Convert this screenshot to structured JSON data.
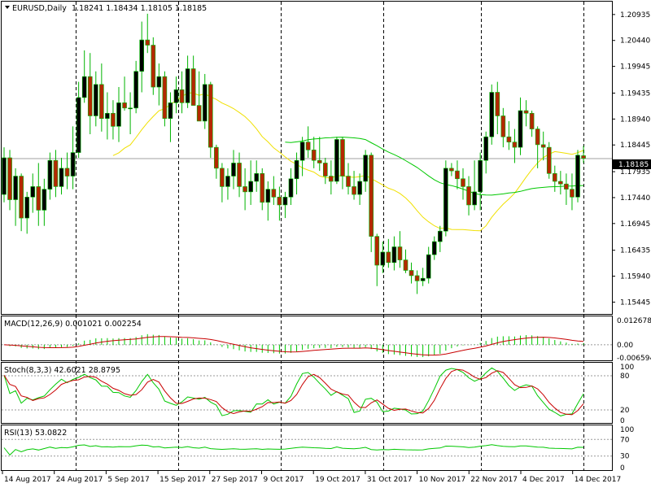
{
  "header": {
    "symbol": "EURUSD,Daily",
    "ohlc": "1.18241 1.18434 1.18105 1.18185"
  },
  "chart_data": [
    {
      "type": "candlestick",
      "title": "EURUSD,Daily",
      "ylim": [
        1.1525,
        1.2115
      ],
      "y_ticks": [
        "1.20935",
        "1.20440",
        "1.19945",
        "1.19435",
        "1.18940",
        "1.18445",
        "1.17935",
        "1.17440",
        "1.16945",
        "1.16435",
        "1.15940",
        "1.15445"
      ],
      "current_price": "1.18185",
      "colors": {
        "bull": "#00b400",
        "bear": "#d20000",
        "body_bull": "#000000",
        "body_bear": "#b42800",
        "ma_fast": "#f0e000",
        "ma_slow": "#00c800",
        "price_line": "#a0a0a0"
      },
      "candles": [
        [
          1.175,
          1.184,
          1.1735,
          1.182
        ],
        [
          1.182,
          1.1835,
          1.172,
          1.174
        ],
        [
          1.174,
          1.18,
          1.169,
          1.1785
        ],
        [
          1.1785,
          1.179,
          1.168,
          1.1705
        ],
        [
          1.1705,
          1.1755,
          1.1675,
          1.1745
        ],
        [
          1.1745,
          1.179,
          1.1715,
          1.1765
        ],
        [
          1.1765,
          1.181,
          1.169,
          1.172
        ],
        [
          1.172,
          1.178,
          1.169,
          1.176
        ],
        [
          1.176,
          1.183,
          1.174,
          1.1815
        ],
        [
          1.1815,
          1.1835,
          1.1745,
          1.1765
        ],
        [
          1.1765,
          1.182,
          1.175,
          1.18
        ],
        [
          1.18,
          1.183,
          1.176,
          1.1785
        ],
        [
          1.1785,
          1.188,
          1.176,
          1.183
        ],
        [
          1.183,
          1.1965,
          1.182,
          1.1935
        ],
        [
          1.1935,
          1.2025,
          1.1925,
          1.1975
        ],
        [
          1.1975,
          1.202,
          1.1865,
          1.19
        ],
        [
          1.19,
          1.1985,
          1.188,
          1.196
        ],
        [
          1.196,
          1.2,
          1.187,
          1.1895
        ],
        [
          1.1895,
          1.1945,
          1.1855,
          1.1905
        ],
        [
          1.1905,
          1.193,
          1.1855,
          1.188
        ],
        [
          1.188,
          1.1955,
          1.185,
          1.1925
        ],
        [
          1.1925,
          1.1975,
          1.191,
          1.1915
        ],
        [
          1.1915,
          1.1945,
          1.1865,
          1.1915
        ],
        [
          1.1915,
          1.2005,
          1.1905,
          1.1985
        ],
        [
          1.1985,
          1.208,
          1.1945,
          1.2045
        ],
        [
          1.2045,
          1.2095,
          1.202,
          1.2035
        ],
        [
          1.2035,
          1.205,
          1.194,
          1.1955
        ],
        [
          1.1955,
          1.2,
          1.192,
          1.1975
        ],
        [
          1.1975,
          1.1985,
          1.188,
          1.1895
        ],
        [
          1.1895,
          1.1945,
          1.185,
          1.1925
        ],
        [
          1.1925,
          1.1975,
          1.1905,
          1.195
        ],
        [
          1.195,
          1.1985,
          1.1905,
          1.1925
        ],
        [
          1.1925,
          1.2015,
          1.1915,
          1.199
        ],
        [
          1.199,
          1.2015,
          1.192,
          1.192
        ],
        [
          1.192,
          1.1985,
          1.189,
          1.189
        ],
        [
          1.189,
          1.198,
          1.1875,
          1.196
        ],
        [
          1.196,
          1.1965,
          1.182,
          1.184
        ],
        [
          1.184,
          1.1845,
          1.178,
          1.18
        ],
        [
          1.18,
          1.181,
          1.1735,
          1.1765
        ],
        [
          1.1765,
          1.18,
          1.174,
          1.1785
        ],
        [
          1.1785,
          1.1835,
          1.176,
          1.181
        ],
        [
          1.181,
          1.183,
          1.1745,
          1.1765
        ],
        [
          1.1765,
          1.18,
          1.172,
          1.1755
        ],
        [
          1.1755,
          1.1815,
          1.173,
          1.1775
        ],
        [
          1.1775,
          1.1815,
          1.1755,
          1.179
        ],
        [
          1.179,
          1.18,
          1.172,
          1.1735
        ],
        [
          1.1735,
          1.1775,
          1.17,
          1.176
        ],
        [
          1.176,
          1.1785,
          1.173,
          1.1745
        ],
        [
          1.1745,
          1.1765,
          1.17,
          1.173
        ],
        [
          1.173,
          1.1755,
          1.1705,
          1.1745
        ],
        [
          1.1745,
          1.18,
          1.173,
          1.178
        ],
        [
          1.178,
          1.183,
          1.175,
          1.1815
        ],
        [
          1.1815,
          1.186,
          1.1785,
          1.185
        ],
        [
          1.185,
          1.188,
          1.182,
          1.1835
        ],
        [
          1.1835,
          1.186,
          1.18,
          1.1815
        ],
        [
          1.1815,
          1.186,
          1.1795,
          1.181
        ],
        [
          1.181,
          1.182,
          1.177,
          1.1785
        ],
        [
          1.1785,
          1.1815,
          1.175,
          1.1775
        ],
        [
          1.1775,
          1.186,
          1.177,
          1.1855
        ],
        [
          1.1855,
          1.186,
          1.176,
          1.1785
        ],
        [
          1.1785,
          1.181,
          1.175,
          1.1765
        ],
        [
          1.1765,
          1.1795,
          1.174,
          1.175
        ],
        [
          1.175,
          1.179,
          1.173,
          1.1775
        ],
        [
          1.1775,
          1.1835,
          1.1755,
          1.1825
        ],
        [
          1.1825,
          1.183,
          1.164,
          1.167
        ],
        [
          1.167,
          1.1675,
          1.1575,
          1.1615
        ],
        [
          1.1615,
          1.166,
          1.16,
          1.164
        ],
        [
          1.164,
          1.1665,
          1.161,
          1.162
        ],
        [
          1.162,
          1.167,
          1.1605,
          1.165
        ],
        [
          1.165,
          1.168,
          1.161,
          1.1625
        ],
        [
          1.1625,
          1.1645,
          1.16,
          1.1605
        ],
        [
          1.1605,
          1.162,
          1.158,
          1.1595
        ],
        [
          1.1595,
          1.1605,
          1.156,
          1.1585
        ],
        [
          1.1585,
          1.161,
          1.1575,
          1.159
        ],
        [
          1.159,
          1.165,
          1.158,
          1.1635
        ],
        [
          1.1635,
          1.167,
          1.1625,
          1.166
        ],
        [
          1.166,
          1.169,
          1.164,
          1.168
        ],
        [
          1.168,
          1.1815,
          1.167,
          1.18
        ],
        [
          1.18,
          1.181,
          1.1785,
          1.1795
        ],
        [
          1.1795,
          1.1815,
          1.176,
          1.178
        ],
        [
          1.178,
          1.18,
          1.174,
          1.1765
        ],
        [
          1.1765,
          1.1785,
          1.171,
          1.173
        ],
        [
          1.173,
          1.1815,
          1.172,
          1.1755
        ],
        [
          1.1755,
          1.183,
          1.172,
          1.1815
        ],
        [
          1.1815,
          1.187,
          1.179,
          1.186
        ],
        [
          1.186,
          1.196,
          1.1845,
          1.1945
        ],
        [
          1.1945,
          1.1965,
          1.1865,
          1.19
        ],
        [
          1.19,
          1.1915,
          1.184,
          1.186
        ],
        [
          1.186,
          1.189,
          1.1835,
          1.185
        ],
        [
          1.185,
          1.1875,
          1.181,
          1.184
        ],
        [
          1.184,
          1.1935,
          1.1825,
          1.191
        ],
        [
          1.191,
          1.193,
          1.188,
          1.1905
        ],
        [
          1.1905,
          1.191,
          1.186,
          1.1875
        ],
        [
          1.1875,
          1.188,
          1.18,
          1.1845
        ],
        [
          1.1845,
          1.187,
          1.1815,
          1.184
        ],
        [
          1.184,
          1.185,
          1.178,
          1.179
        ],
        [
          1.179,
          1.1805,
          1.1755,
          1.1775
        ],
        [
          1.1775,
          1.1795,
          1.175,
          1.177
        ],
        [
          1.177,
          1.179,
          1.173,
          1.176
        ],
        [
          1.176,
          1.179,
          1.172,
          1.1745
        ],
        [
          1.1745,
          1.1835,
          1.1735,
          1.1825
        ],
        [
          1.1824,
          1.1843,
          1.181,
          1.1819
        ]
      ]
    },
    {
      "type": "histogram",
      "title": "MACD(12,26,9) 0.001021 0.002254",
      "ylim": [
        -0.0066,
        0.0127
      ],
      "y_ticks": [
        "0.012678",
        "0.00",
        "-0.006594"
      ]
    },
    {
      "type": "line",
      "title": "Stoch(8,3,3) 42.6021 28.8795",
      "ylim": [
        0,
        100
      ],
      "y_ticks": [
        "100",
        "80",
        "20",
        "0"
      ]
    },
    {
      "type": "line",
      "title": "RSI(13) 53.0822",
      "ylim": [
        0,
        100
      ],
      "y_ticks": [
        "100",
        "70",
        "30",
        "0"
      ]
    }
  ],
  "x_ticks": [
    "14 Aug 2017",
    "24 Aug 2017",
    "5 Sep 2017",
    "15 Sep 2017",
    "27 Sep 2017",
    "9 Oct 2017",
    "19 Oct 2017",
    "31 Oct 2017",
    "10 Nov 2017",
    "22 Nov 2017",
    "4 Dec 2017",
    "14 Dec 2017"
  ]
}
